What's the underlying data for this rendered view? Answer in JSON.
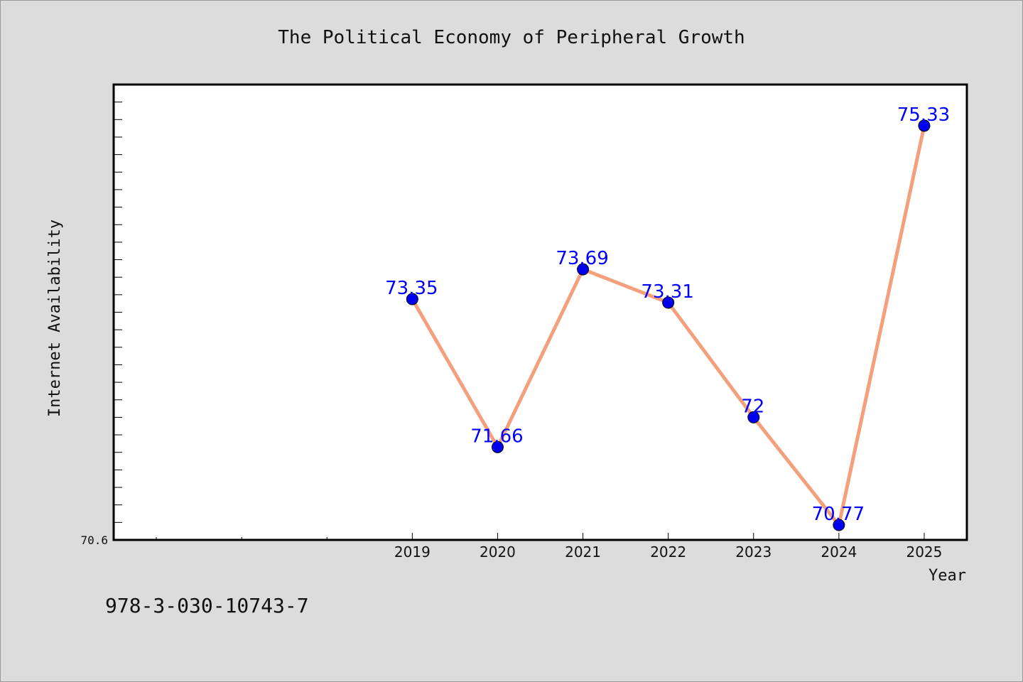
{
  "footer": {
    "isbn": "978-3-030-10743-7"
  },
  "chart_data": {
    "type": "line",
    "title": "The Political Economy of Peripheral Growth",
    "xlabel": "Year",
    "ylabel": "Internet Availability",
    "x": [
      "2019",
      "2020",
      "2021",
      "2022",
      "2023",
      "2024",
      "2025"
    ],
    "x_positions": [
      2019,
      2020,
      2021,
      2022,
      2023,
      2024,
      2025
    ],
    "xlim": [
      2015.5,
      2025.5
    ],
    "series": [
      {
        "values": [
          73.35,
          71.66,
          73.69,
          73.31,
          72.0,
          70.77,
          75.33
        ]
      }
    ],
    "data_labels": [
      "73.35",
      "71.66",
      "73.69",
      "73.31",
      "72",
      "70.77",
      "75.33"
    ],
    "ylim": [
      70.6,
      75.8
    ],
    "y_tick_labels": [
      "70.6"
    ],
    "y_minor_step": 0.2,
    "x_minor_ticks": [
      2016,
      2017,
      2018
    ],
    "grid": false,
    "colors": {
      "line": "#f4a07c",
      "marker": "#0000ee",
      "label": "#0000ff",
      "plot_bg": "#ffffff",
      "page_bg": "#dcdcdc"
    }
  }
}
